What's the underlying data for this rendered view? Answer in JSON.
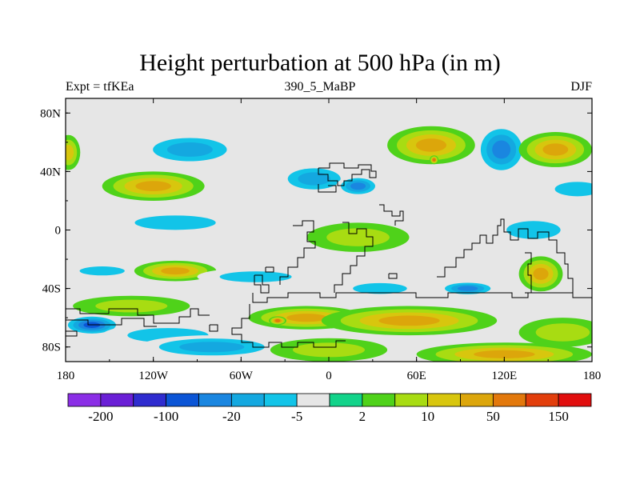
{
  "chart_data": {
    "type": "heatmap",
    "title": "Height perturbation at 500 hPa (in m)",
    "left_label": "Expt = tfKEa",
    "center_label": "390_5_MaBP",
    "right_label": "DJF",
    "x_ticks": [
      "180",
      "120W",
      "60W",
      "0",
      "60E",
      "120E",
      "180"
    ],
    "y_ticks": [
      "80N",
      "40N",
      "0",
      "40S",
      "80S"
    ],
    "x_range": [
      -180,
      180
    ],
    "y_range": [
      -90,
      90
    ],
    "colorbar": {
      "colors": [
        "#8b2ee6",
        "#6a1fd6",
        "#2f2ccf",
        "#0b55d6",
        "#1a86e0",
        "#14a8e0",
        "#12c4e8",
        "#e6e6e6",
        "#12d38a",
        "#4fd21a",
        "#a8dc12",
        "#d8c60e",
        "#dca60b",
        "#e2780c",
        "#e23e0c",
        "#e10e0e"
      ],
      "labels": [
        "-200",
        "-100",
        "-20",
        "-5",
        "2",
        "10",
        "50",
        "150"
      ]
    },
    "anomaly_centers": [
      {
        "lon": -95,
        "lat": 55,
        "value": -12,
        "rx": 35,
        "ry": 11
      },
      {
        "lon": -10,
        "lat": 35,
        "value": -10,
        "rx": 25,
        "ry": 10
      },
      {
        "lon": 20,
        "lat": 30,
        "value": -20,
        "rx": 15,
        "ry": 7
      },
      {
        "lon": 70,
        "lat": 58,
        "value": 25,
        "rx": 30,
        "ry": 13
      },
      {
        "lon": 72,
        "lat": 48,
        "value": 60,
        "rx": 3,
        "ry": 3
      },
      {
        "lon": 118,
        "lat": 55,
        "value": -30,
        "rx": 18,
        "ry": 18
      },
      {
        "lon": 155,
        "lat": 55,
        "value": 20,
        "rx": 25,
        "ry": 12
      },
      {
        "lon": -178,
        "lat": 53,
        "value": 12,
        "rx": 8,
        "ry": 12
      },
      {
        "lon": -120,
        "lat": 30,
        "value": 20,
        "rx": 35,
        "ry": 10
      },
      {
        "lon": 170,
        "lat": 28,
        "value": -6,
        "rx": 25,
        "ry": 8
      },
      {
        "lon": -105,
        "lat": 5,
        "value": -5,
        "rx": 45,
        "ry": 8
      },
      {
        "lon": 20,
        "lat": -5,
        "value": 5,
        "rx": 35,
        "ry": 10
      },
      {
        "lon": 140,
        "lat": 0,
        "value": -5,
        "rx": 30,
        "ry": 10
      },
      {
        "lon": -155,
        "lat": -28,
        "value": -5,
        "rx": 25,
        "ry": 5
      },
      {
        "lon": -105,
        "lat": -28,
        "value": 30,
        "rx": 28,
        "ry": 7
      },
      {
        "lon": -50,
        "lat": -32,
        "value": -8,
        "rx": 40,
        "ry": 6
      },
      {
        "lon": 35,
        "lat": -40,
        "value": -6,
        "rx": 30,
        "ry": 6
      },
      {
        "lon": 95,
        "lat": -40,
        "value": -25,
        "rx": 20,
        "ry": 5
      },
      {
        "lon": 145,
        "lat": -30,
        "value": 25,
        "rx": 15,
        "ry": 12
      },
      {
        "lon": -135,
        "lat": -52,
        "value": 5,
        "rx": 40,
        "ry": 7
      },
      {
        "lon": -15,
        "lat": -60,
        "value": 30,
        "rx": 40,
        "ry": 8
      },
      {
        "lon": 55,
        "lat": -62,
        "value": 20,
        "rx": 60,
        "ry": 10
      },
      {
        "lon": -35,
        "lat": -62,
        "value": 80,
        "rx": 6,
        "ry": 3
      },
      {
        "lon": -162,
        "lat": -65,
        "value": -60,
        "rx": 20,
        "ry": 7
      },
      {
        "lon": -110,
        "lat": -72,
        "value": -8,
        "rx": 45,
        "ry": 8
      },
      {
        "lon": -80,
        "lat": -80,
        "value": -18,
        "rx": 50,
        "ry": 8
      },
      {
        "lon": 0,
        "lat": -82,
        "value": 6,
        "rx": 40,
        "ry": 8
      },
      {
        "lon": 120,
        "lat": -85,
        "value": 30,
        "rx": 60,
        "ry": 8
      },
      {
        "lon": 160,
        "lat": -70,
        "value": 8,
        "rx": 30,
        "ry": 10
      }
    ]
  }
}
